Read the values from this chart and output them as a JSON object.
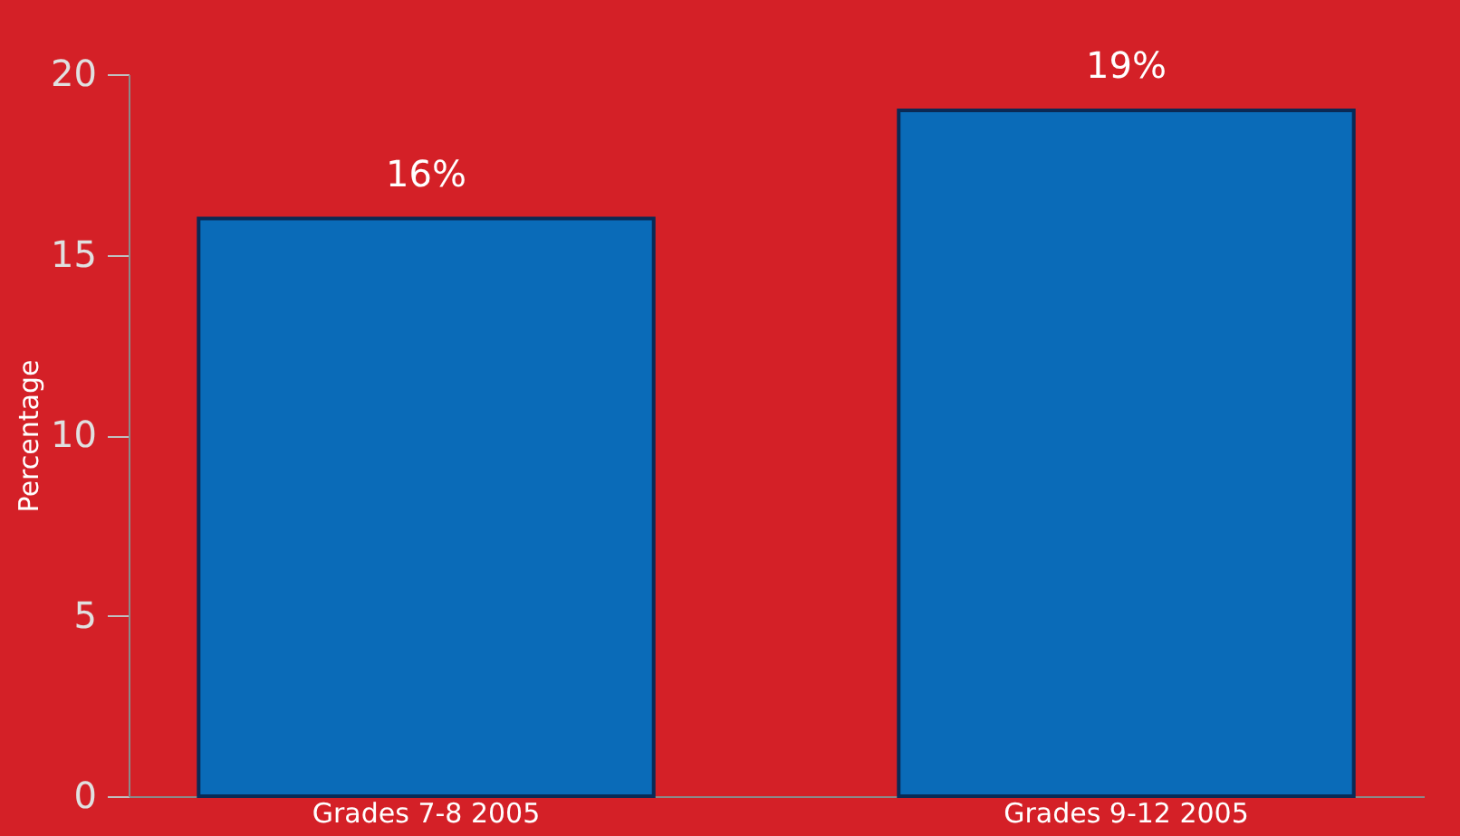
{
  "chart_data": {
    "type": "bar",
    "ylabel": "Percentage",
    "categories": [
      "Grades 7-8 2005",
      "Grades 9-12 2005"
    ],
    "values": [
      16,
      19
    ],
    "value_labels": [
      "16%",
      "19%"
    ],
    "color": "#0a6bb8",
    "ylim": [
      0,
      20
    ],
    "yticks": [
      0,
      5,
      10,
      15,
      20
    ],
    "grid": false
  }
}
